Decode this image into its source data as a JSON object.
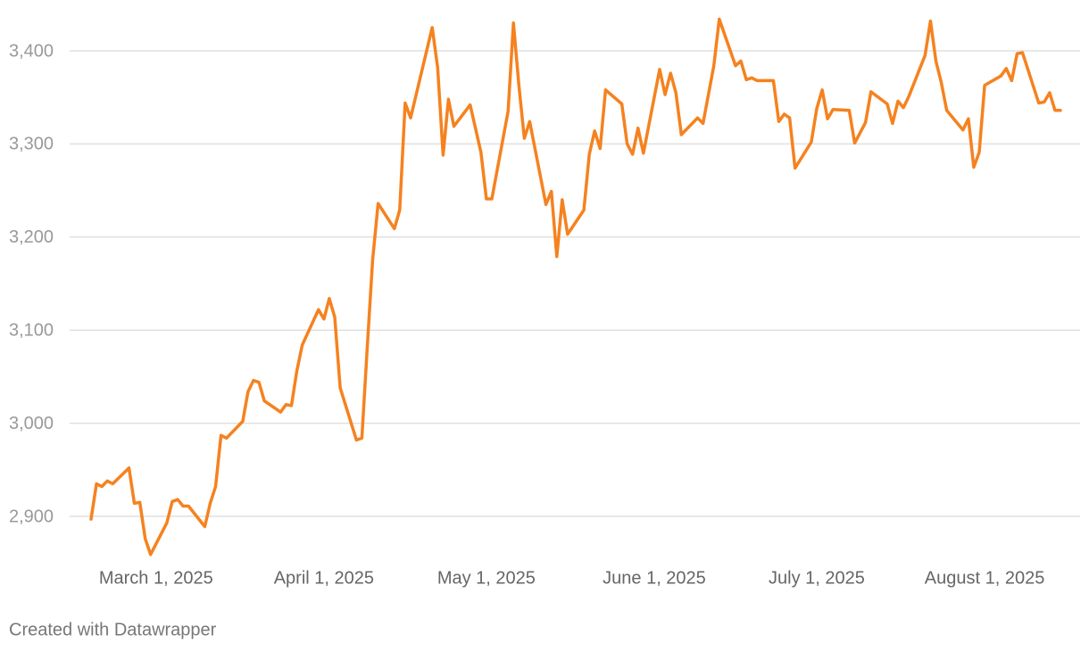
{
  "chart_data": {
    "type": "line",
    "x": [
      "2025-02-17",
      "2025-02-18",
      "2025-02-19",
      "2025-02-20",
      "2025-02-21",
      "2025-02-24",
      "2025-02-25",
      "2025-02-26",
      "2025-02-27",
      "2025-02-28",
      "2025-03-03",
      "2025-03-04",
      "2025-03-05",
      "2025-03-06",
      "2025-03-07",
      "2025-03-10",
      "2025-03-11",
      "2025-03-12",
      "2025-03-13",
      "2025-03-14",
      "2025-03-17",
      "2025-03-18",
      "2025-03-19",
      "2025-03-20",
      "2025-03-21",
      "2025-03-24",
      "2025-03-25",
      "2025-03-26",
      "2025-03-27",
      "2025-03-28",
      "2025-03-31",
      "2025-04-01",
      "2025-04-02",
      "2025-04-03",
      "2025-04-04",
      "2025-04-07",
      "2025-04-08",
      "2025-04-09",
      "2025-04-10",
      "2025-04-11",
      "2025-04-14",
      "2025-04-15",
      "2025-04-16",
      "2025-04-17",
      "2025-04-21",
      "2025-04-22",
      "2025-04-23",
      "2025-04-24",
      "2025-04-25",
      "2025-04-28",
      "2025-04-30",
      "2025-05-01",
      "2025-05-02",
      "2025-05-05",
      "2025-05-06",
      "2025-05-07",
      "2025-05-08",
      "2025-05-09",
      "2025-05-12",
      "2025-05-13",
      "2025-05-14",
      "2025-05-15",
      "2025-05-16",
      "2025-05-19",
      "2025-05-20",
      "2025-05-21",
      "2025-05-22",
      "2025-05-23",
      "2025-05-26",
      "2025-05-27",
      "2025-05-28",
      "2025-05-29",
      "2025-05-30",
      "2025-06-02",
      "2025-06-03",
      "2025-06-04",
      "2025-06-05",
      "2025-06-06",
      "2025-06-09",
      "2025-06-10",
      "2025-06-12",
      "2025-06-13",
      "2025-06-16",
      "2025-06-17",
      "2025-06-18",
      "2025-06-19",
      "2025-06-20",
      "2025-06-23",
      "2025-06-24",
      "2025-06-25",
      "2025-06-26",
      "2025-06-27",
      "2025-06-30",
      "2025-07-01",
      "2025-07-02",
      "2025-07-03",
      "2025-07-04",
      "2025-07-07",
      "2025-07-08",
      "2025-07-10",
      "2025-07-11",
      "2025-07-14",
      "2025-07-15",
      "2025-07-16",
      "2025-07-17",
      "2025-07-18",
      "2025-07-21",
      "2025-07-22",
      "2025-07-23",
      "2025-07-24",
      "2025-07-25",
      "2025-07-28",
      "2025-07-29",
      "2025-07-30",
      "2025-07-31",
      "2025-08-01",
      "2025-08-04",
      "2025-08-05",
      "2025-08-06",
      "2025-08-07",
      "2025-08-08",
      "2025-08-11",
      "2025-08-12",
      "2025-08-13",
      "2025-08-14",
      "2025-08-15"
    ],
    "values": [
      2897,
      2935,
      2932,
      2938,
      2935,
      2952,
      2914,
      2915,
      2876,
      2859,
      2893,
      2916,
      2918,
      2911,
      2911,
      2889,
      2914,
      2932,
      2987,
      2984,
      3002,
      3034,
      3046,
      3044,
      3024,
      3012,
      3020,
      3019,
      3056,
      3084,
      3122,
      3112,
      3134,
      3114,
      3038,
      2982,
      2984,
      3081,
      3176,
      3236,
      3209,
      3229,
      3344,
      3328,
      3425,
      3382,
      3288,
      3348,
      3319,
      3342,
      3291,
      3241,
      3241,
      3335,
      3430,
      3363,
      3306,
      3324,
      3235,
      3249,
      3179,
      3240,
      3203,
      3229,
      3289,
      3314,
      3295,
      3358,
      3343,
      3300,
      3289,
      3317,
      3290,
      3380,
      3353,
      3376,
      3355,
      3310,
      3328,
      3322,
      3384,
      3434,
      3384,
      3389,
      3369,
      3371,
      3368,
      3368,
      3324,
      3332,
      3328,
      3274,
      3302,
      3338,
      3358,
      3327,
      3337,
      3336,
      3301,
      3323,
      3356,
      3343,
      3322,
      3346,
      3339,
      3351,
      3395,
      3432,
      3389,
      3366,
      3336,
      3315,
      3327,
      3275,
      3291,
      3363,
      3373,
      3381,
      3368,
      3397,
      3398,
      3344,
      3345,
      3355,
      3336,
      3336
    ],
    "color": "#f5821f",
    "xlim": [
      "2025-02-17",
      "2025-08-15"
    ],
    "xticks": [
      {
        "value": "2025-03-01",
        "label": "March 1, 2025"
      },
      {
        "value": "2025-04-01",
        "label": "April 1, 2025"
      },
      {
        "value": "2025-05-01",
        "label": "May 1, 2025"
      },
      {
        "value": "2025-06-01",
        "label": "June 1, 2025"
      },
      {
        "value": "2025-07-01",
        "label": "July 1, 2025"
      },
      {
        "value": "2025-08-01",
        "label": "August 1, 2025"
      }
    ],
    "ylim": [
      2850,
      3450
    ],
    "yticks": [
      {
        "value": 2900,
        "label": "2,900"
      },
      {
        "value": 3000,
        "label": "3,000"
      },
      {
        "value": 3100,
        "label": "3,100"
      },
      {
        "value": 3200,
        "label": "3,200"
      },
      {
        "value": 3300,
        "label": "3,300"
      },
      {
        "value": 3400,
        "label": "3,400"
      }
    ],
    "grid": true,
    "footer": "Created with Datawrapper"
  }
}
